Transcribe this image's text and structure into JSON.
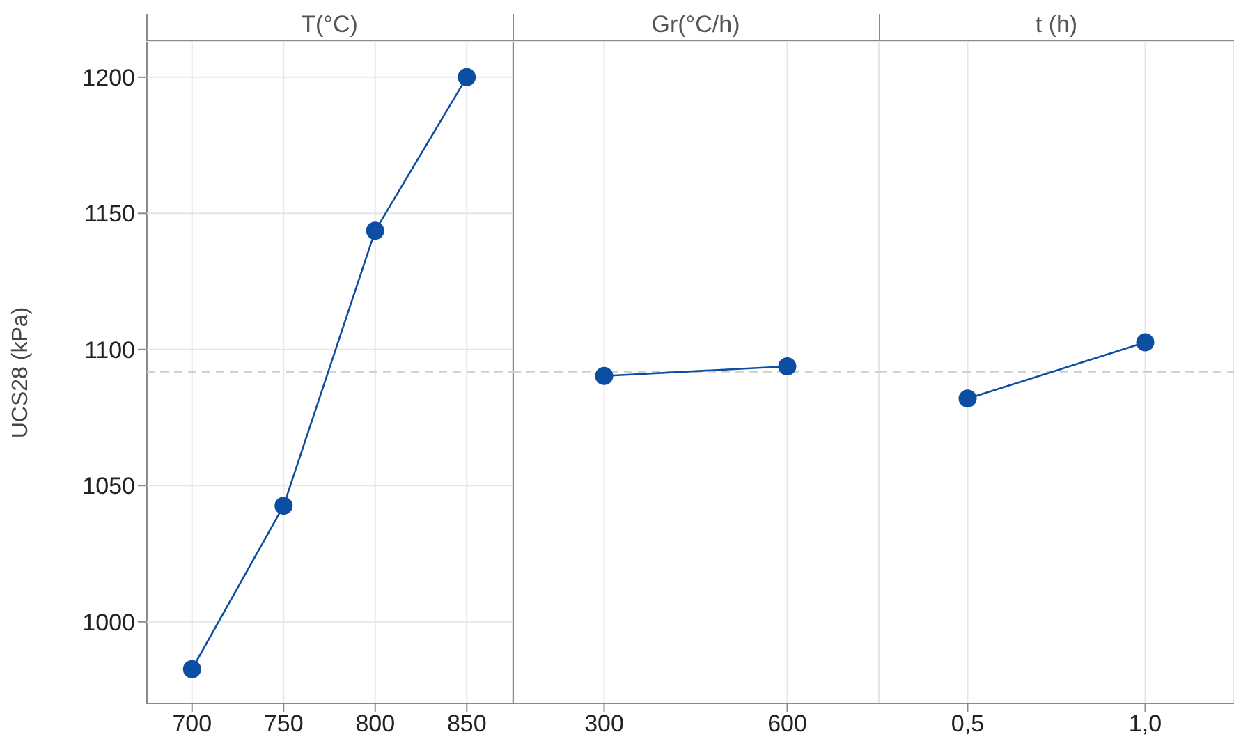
{
  "chart_data": [
    {
      "type": "line",
      "title": "T(°C)",
      "ylabel": "UCS28 (kPa)",
      "categories": [
        "700",
        "750",
        "800",
        "850"
      ],
      "values": [
        982.6,
        1042.6,
        1143.6,
        1200
      ],
      "color": "#0b4ea2",
      "ylim": [
        970,
        1213
      ],
      "yticks": [
        1000,
        1050,
        1100,
        1150,
        1200
      ],
      "grid": true,
      "marker": "circle",
      "ref_lines": [
        {
          "axis": "y",
          "value": 1091.8,
          "color": "#cccccc",
          "line_style": "dashed"
        }
      ]
    },
    {
      "type": "line",
      "title": "Gr(°C/h)",
      "categories": [
        "300",
        "600"
      ],
      "values": [
        1090.3,
        1093.8
      ],
      "color": "#0b4ea2",
      "ylim": [
        970,
        1213
      ],
      "yticks": [
        1000,
        1050,
        1100,
        1150,
        1200
      ],
      "grid": true,
      "marker": "circle",
      "tick_labels": "x",
      "ref_lines": [
        {
          "axis": "y",
          "value": 1091.8,
          "color": "#cccccc",
          "line_style": "dashed"
        }
      ]
    },
    {
      "type": "line",
      "title": "t (h)",
      "categories": [
        "0,5",
        "1,0"
      ],
      "values": [
        1082,
        1102.6
      ],
      "color": "#0b4ea2",
      "ylim": [
        970,
        1213
      ],
      "yticks": [
        1000,
        1050,
        1100,
        1150,
        1200
      ],
      "grid": true,
      "marker": "circle",
      "tick_labels": "x",
      "ref_lines": [
        {
          "axis": "y",
          "value": 1091.8,
          "color": "#cccccc",
          "line_style": "dashed"
        }
      ]
    }
  ]
}
